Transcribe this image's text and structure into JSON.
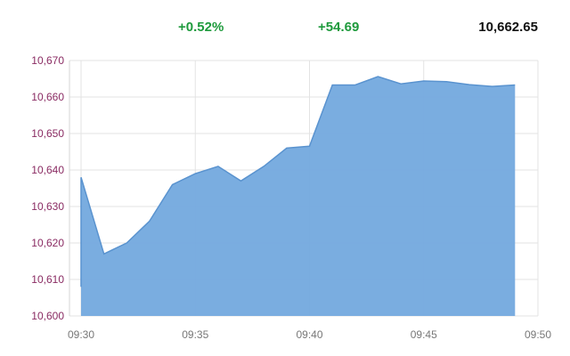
{
  "header": {
    "change_pct": "+0.52%",
    "change_abs": "+54.69",
    "current_value": "10,662.65",
    "positive_color": "#1e9a3c"
  },
  "chart_data": {
    "type": "area",
    "x": [
      "09:30",
      "09:31",
      "09:32",
      "09:33",
      "09:34",
      "09:35",
      "09:36",
      "09:37",
      "09:38",
      "09:39",
      "09:40",
      "09:41",
      "09:42",
      "09:43",
      "09:44",
      "09:45",
      "09:46",
      "09:47",
      "09:48",
      "09:49",
      "09:50"
    ],
    "series": [
      {
        "values": [
          10638,
          10617,
          10620,
          10626,
          10636,
          10639,
          10641,
          10637,
          10641,
          10646,
          10646.5,
          10663.3,
          10663.3,
          10665.6,
          10663.6,
          10664.4,
          10664.2,
          10663.4,
          10662.9,
          10663.3,
          null
        ]
      }
    ],
    "area_start_value": 10608,
    "xticks": [
      "09:30",
      "09:35",
      "09:40",
      "09:45",
      "09:50"
    ],
    "yticks": [
      10600,
      10610,
      10620,
      10630,
      10640,
      10650,
      10660,
      10670
    ],
    "ytick_labels": [
      "10,600",
      "10,610",
      "10,620",
      "10,630",
      "10,640",
      "10,650",
      "10,660",
      "10,670"
    ],
    "ylim": [
      10600,
      10670
    ],
    "grid": true,
    "fill_color": "#73a9de",
    "line_color": "#5a93cf",
    "ytick_color": "#8a2c63"
  }
}
